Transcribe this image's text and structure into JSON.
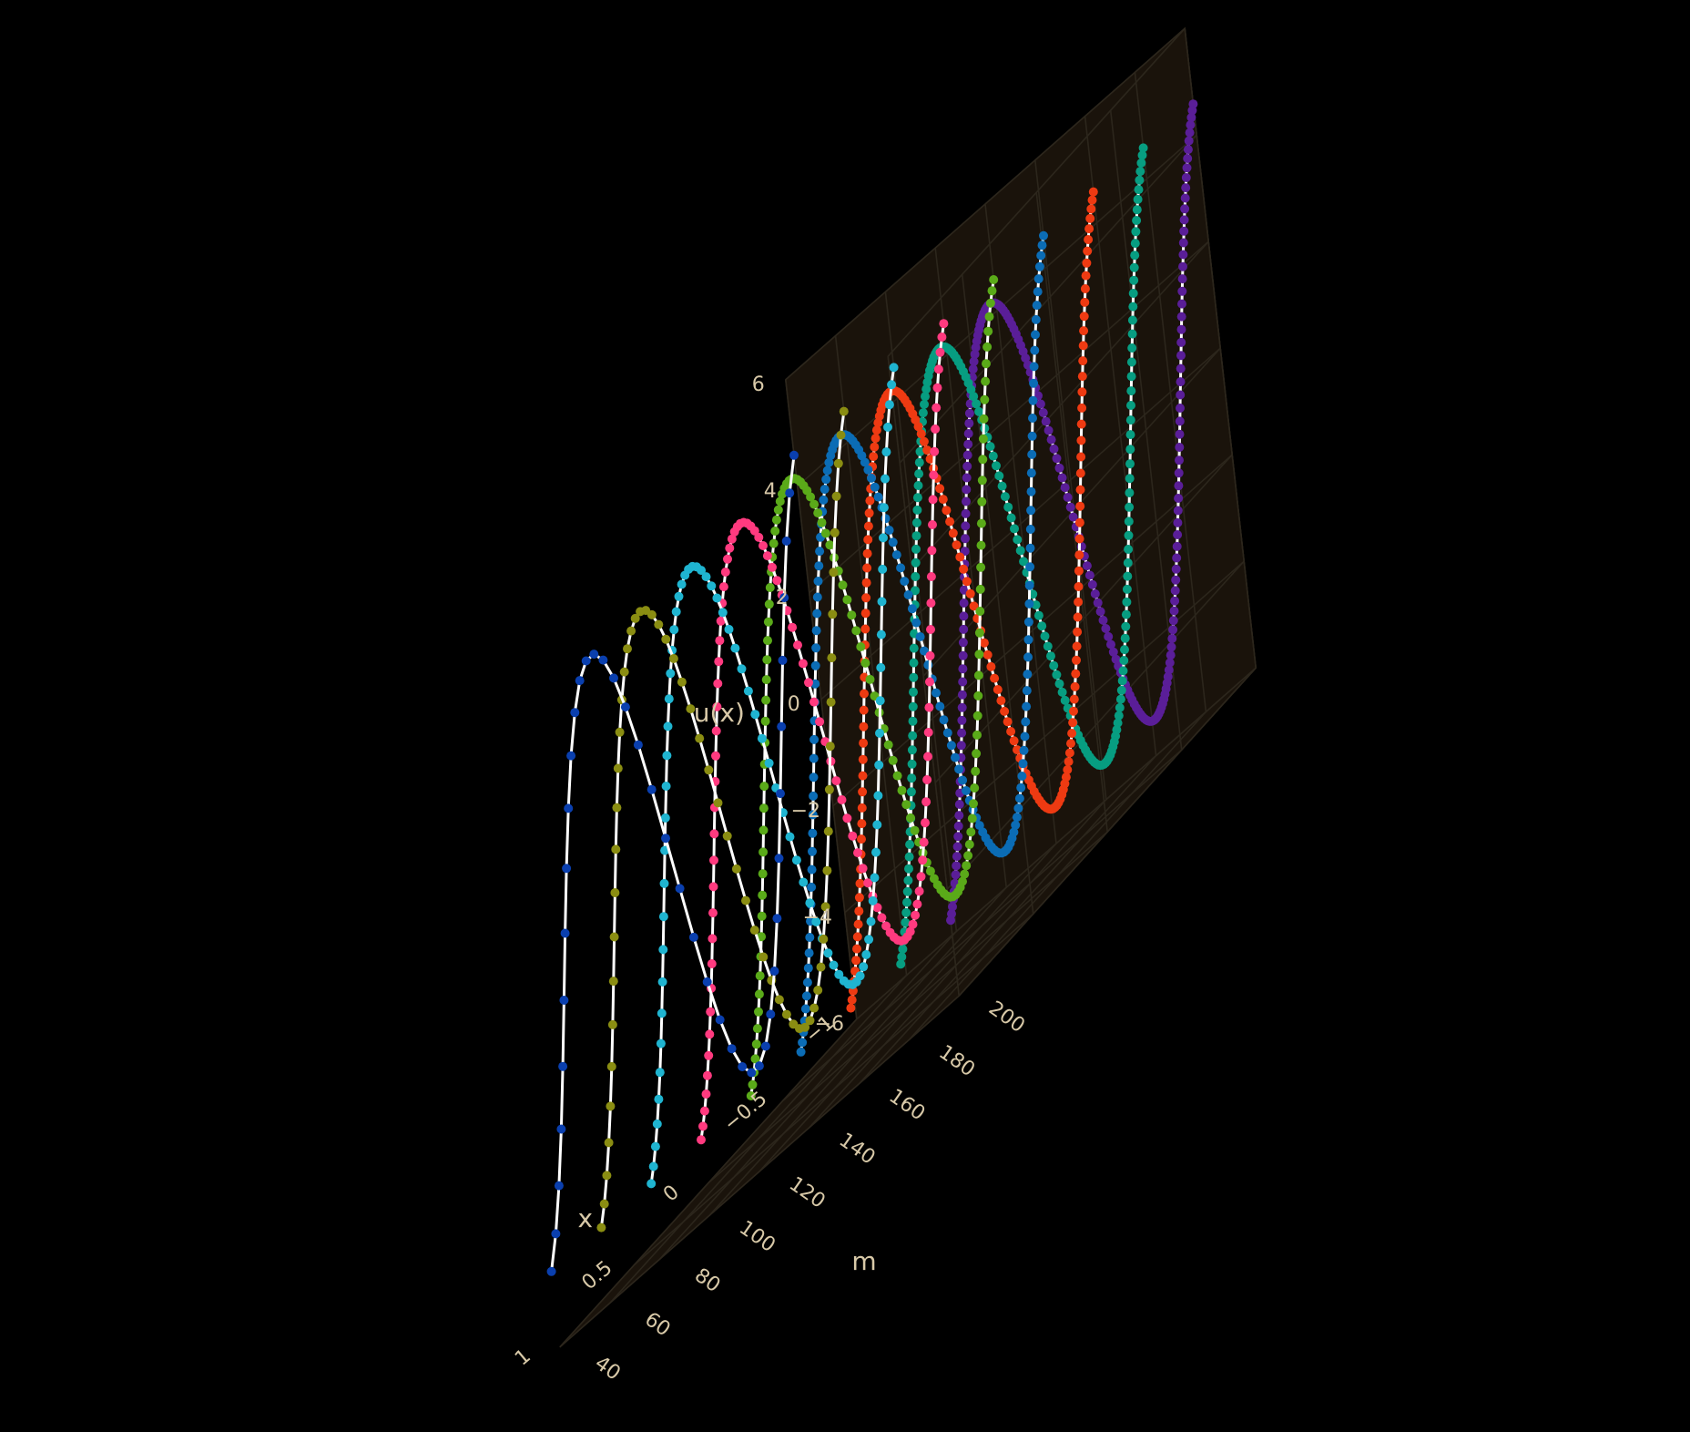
{
  "chart_data": {
    "type": "line",
    "projection": "3d",
    "title": "",
    "xlabel": "x",
    "ylabel": "m",
    "zlabel": "u(x)",
    "xlim": [
      -1,
      1
    ],
    "ylim": [
      40,
      200
    ],
    "zlim": [
      -6,
      6
    ],
    "x_ticks": [
      "−1",
      "−0.5",
      "0",
      "0.5",
      "1"
    ],
    "y_ticks": [
      "40",
      "60",
      "80",
      "100",
      "120",
      "140",
      "160",
      "180",
      "200"
    ],
    "z_ticks": [
      "−6",
      "−4",
      "−2",
      "0",
      "2",
      "4",
      "6"
    ],
    "grid": true,
    "legend": "none",
    "background": "#1a130b",
    "line_color": "#ffffff",
    "function": "u(x) = 5 sin(4.3 x)  (x from -1 to 1), sampled with m points; white line with colored markers",
    "series": [
      {
        "m": 40,
        "color": "#0a3fae"
      },
      {
        "m": 60,
        "color": "#8a8d12"
      },
      {
        "m": 80,
        "color": "#1fb4d0"
      },
      {
        "m": 100,
        "color": "#ff3a7f"
      },
      {
        "m": 120,
        "color": "#5aaa19"
      },
      {
        "m": 140,
        "color": "#0b6cb5"
      },
      {
        "m": 160,
        "color": "#ee3a12"
      },
      {
        "m": 180,
        "color": "#079d81"
      },
      {
        "m": 200,
        "color": "#5a1e98"
      }
    ]
  }
}
